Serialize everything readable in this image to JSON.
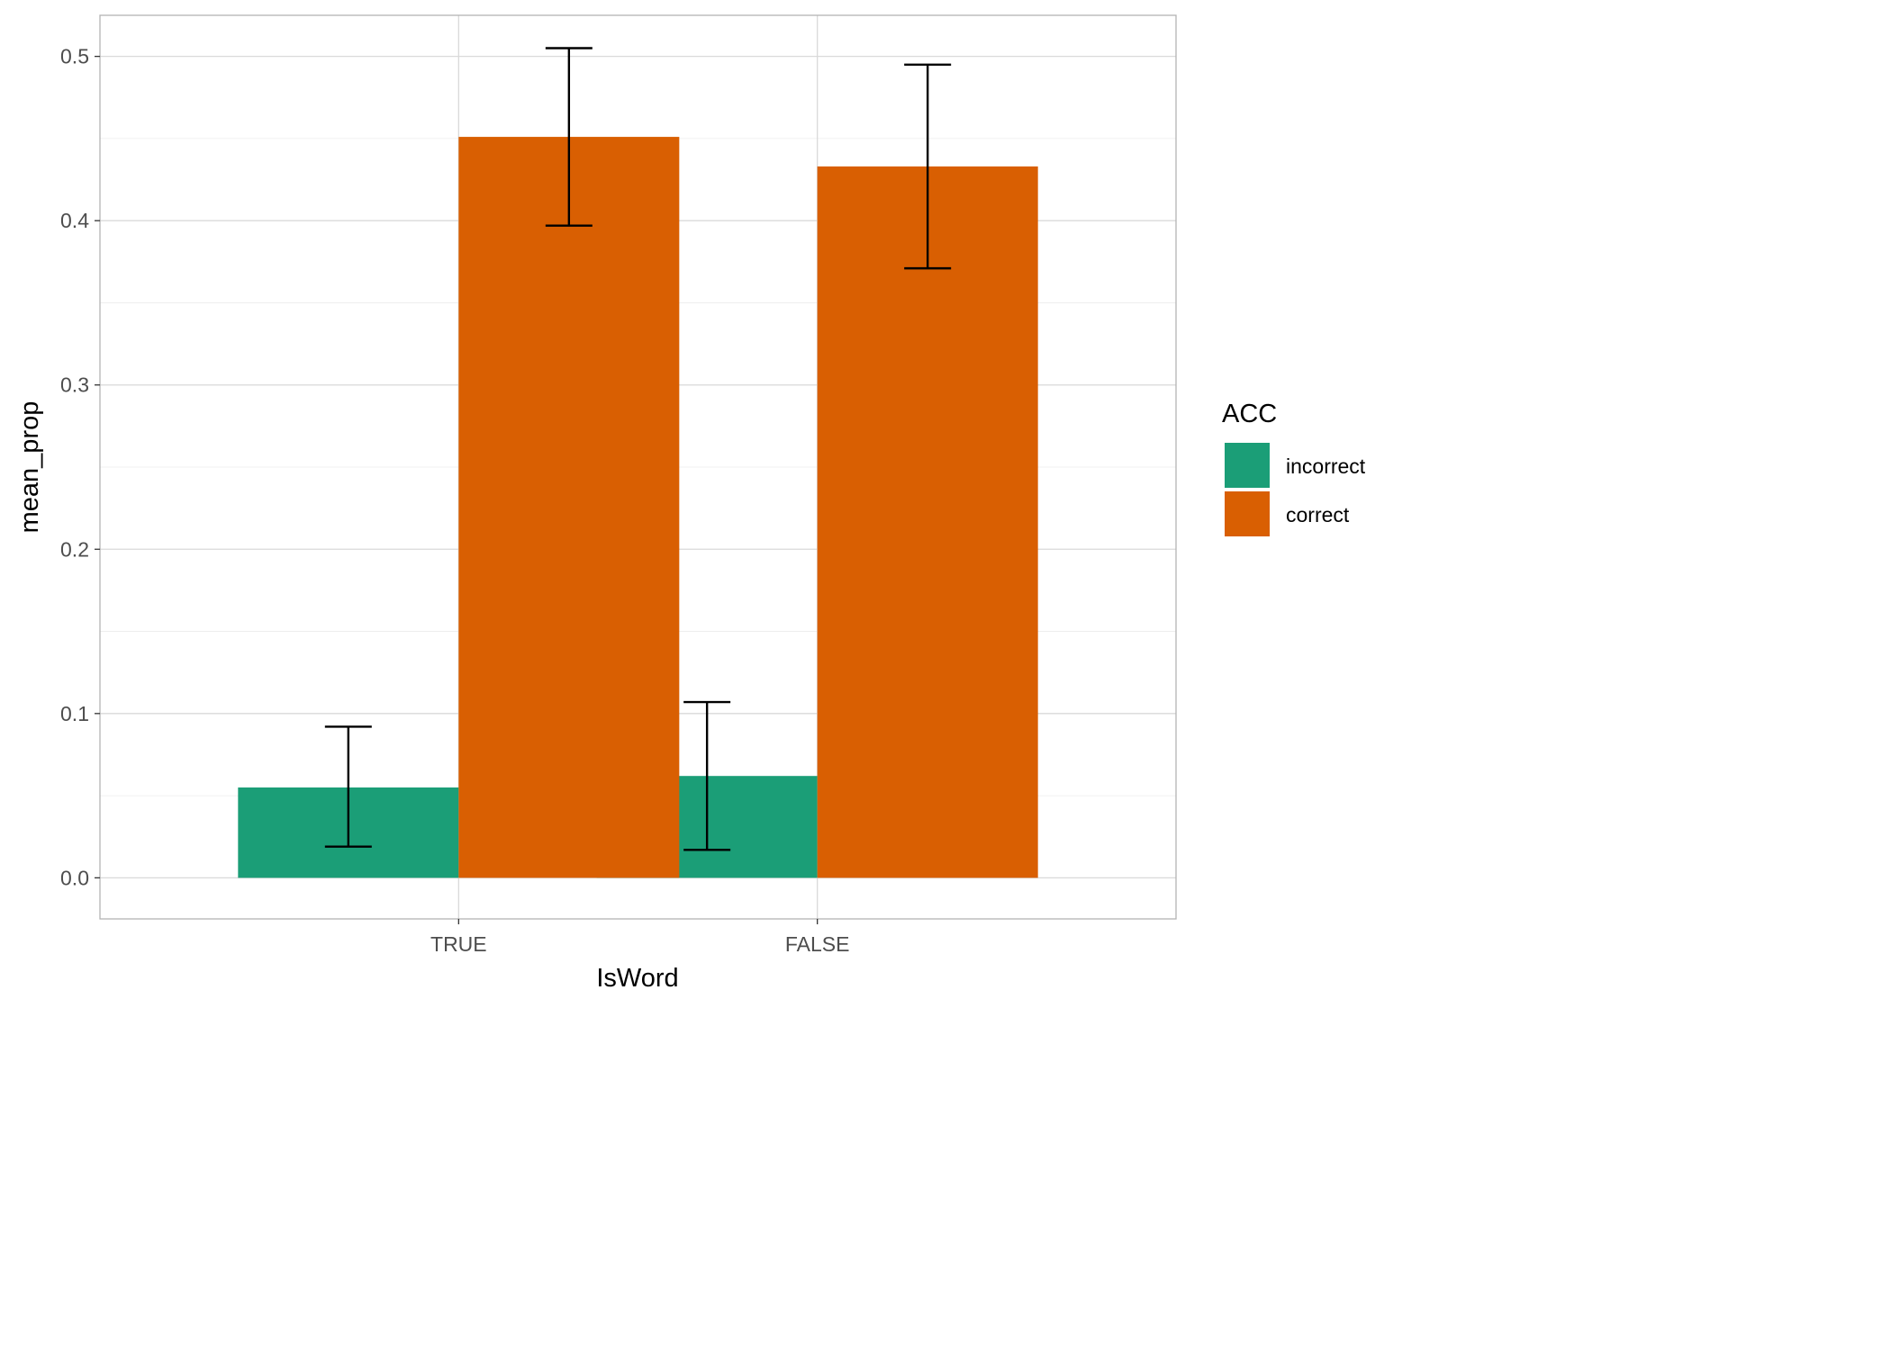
{
  "chart_data": {
    "type": "bar",
    "xlabel": "IsWord",
    "ylabel": "mean_prop",
    "categories": [
      "TRUE",
      "FALSE"
    ],
    "ylim": [
      -0.025,
      0.525
    ],
    "yticks": [
      0.0,
      0.1,
      0.2,
      0.3,
      0.4,
      0.5
    ],
    "ytick_labels": [
      "0.0",
      "0.1",
      "0.2",
      "0.3",
      "0.4",
      "0.5"
    ],
    "grid": true,
    "legend": {
      "title": "ACC",
      "position": "right"
    },
    "series": [
      {
        "name": "incorrect",
        "color": "#1b9e77",
        "values": [
          0.055,
          0.062
        ],
        "error_low": [
          0.019,
          0.017
        ],
        "error_high": [
          0.092,
          0.107
        ]
      },
      {
        "name": "correct",
        "color": "#d95f02",
        "values": [
          0.451,
          0.433
        ],
        "error_low": [
          0.397,
          0.371
        ],
        "error_high": [
          0.505,
          0.495
        ]
      }
    ]
  }
}
